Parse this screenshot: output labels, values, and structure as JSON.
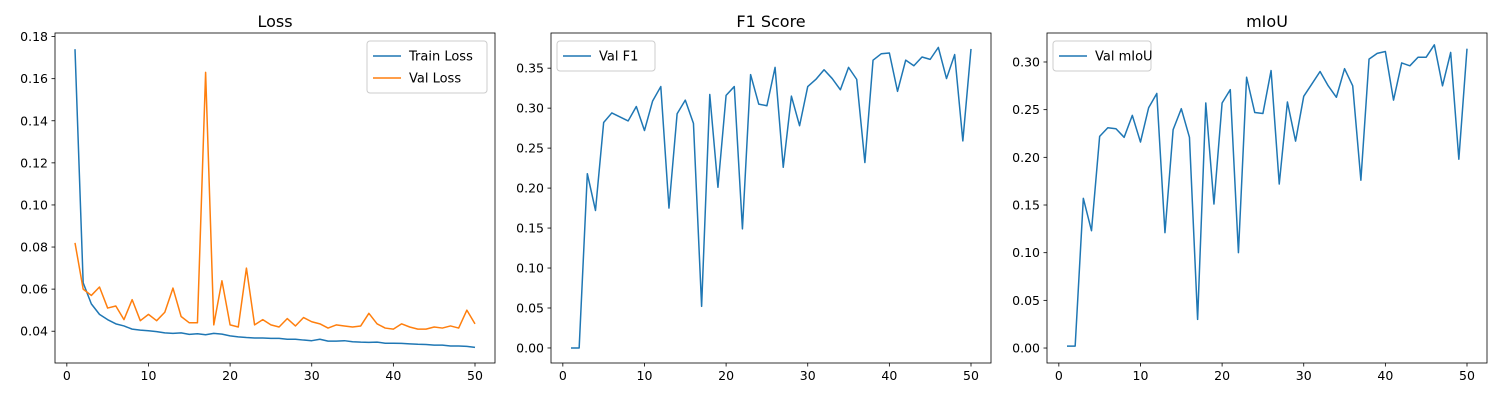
{
  "chart_data": [
    {
      "type": "line",
      "title": "Loss",
      "xlabel": "",
      "ylabel": "",
      "xlim": [
        -1.45,
        52.45
      ],
      "ylim": [
        0.0249,
        0.1817
      ],
      "xticks": [
        0,
        10,
        20,
        30,
        40,
        50
      ],
      "xtick_labels": [
        "0",
        "10",
        "20",
        "30",
        "40",
        "50"
      ],
      "yticks": [
        0.04,
        0.06,
        0.08,
        0.1,
        0.12,
        0.14,
        0.16,
        0.18
      ],
      "ytick_labels": [
        "0.04",
        "0.06",
        "0.08",
        "0.10",
        "0.12",
        "0.14",
        "0.16",
        "0.18"
      ],
      "grid": false,
      "legend": {
        "location": "top-right"
      },
      "x": [
        1,
        2,
        3,
        4,
        5,
        6,
        7,
        8,
        9,
        10,
        11,
        12,
        13,
        14,
        15,
        16,
        17,
        18,
        19,
        20,
        21,
        22,
        23,
        24,
        25,
        26,
        27,
        28,
        29,
        30,
        31,
        32,
        33,
        34,
        35,
        36,
        37,
        38,
        39,
        40,
        41,
        42,
        43,
        44,
        45,
        46,
        47,
        48,
        49,
        50
      ],
      "series": [
        {
          "name": "Train Loss",
          "color": "#1f77b4",
          "values": [
            0.174,
            0.063,
            0.053,
            0.048,
            0.0455,
            0.0435,
            0.0425,
            0.041,
            0.0405,
            0.0402,
            0.0398,
            0.0392,
            0.039,
            0.0392,
            0.0385,
            0.0388,
            0.0383,
            0.039,
            0.0386,
            0.0378,
            0.0373,
            0.037,
            0.0368,
            0.0368,
            0.0366,
            0.0366,
            0.0362,
            0.0362,
            0.0358,
            0.0355,
            0.0362,
            0.0353,
            0.0353,
            0.0355,
            0.035,
            0.0348,
            0.0347,
            0.0348,
            0.0343,
            0.0343,
            0.0342,
            0.034,
            0.0338,
            0.0337,
            0.0334,
            0.0334,
            0.033,
            0.033,
            0.0328,
            0.0323
          ]
        },
        {
          "name": "Val Loss",
          "color": "#ff7f0e",
          "values": [
            0.082,
            0.06,
            0.057,
            0.061,
            0.051,
            0.052,
            0.0455,
            0.055,
            0.045,
            0.048,
            0.045,
            0.049,
            0.0605,
            0.047,
            0.044,
            0.044,
            0.163,
            0.043,
            0.064,
            0.043,
            0.042,
            0.07,
            0.043,
            0.0455,
            0.043,
            0.042,
            0.046,
            0.0425,
            0.0465,
            0.0445,
            0.0435,
            0.0415,
            0.043,
            0.0425,
            0.042,
            0.0425,
            0.0485,
            0.0435,
            0.0415,
            0.041,
            0.0435,
            0.042,
            0.041,
            0.041,
            0.042,
            0.0415,
            0.0425,
            0.0415,
            0.05,
            0.0435
          ]
        }
      ]
    },
    {
      "type": "line",
      "title": "F1 Score",
      "xlabel": "",
      "ylabel": "",
      "xlim": [
        -1.45,
        52.45
      ],
      "ylim": [
        -0.0188,
        0.394
      ],
      "xticks": [
        0,
        10,
        20,
        30,
        40,
        50
      ],
      "xtick_labels": [
        "0",
        "10",
        "20",
        "30",
        "40",
        "50"
      ],
      "yticks": [
        0.0,
        0.05,
        0.1,
        0.15,
        0.2,
        0.25,
        0.3,
        0.35
      ],
      "ytick_labels": [
        "0.00",
        "0.05",
        "0.10",
        "0.15",
        "0.20",
        "0.25",
        "0.30",
        "0.35"
      ],
      "grid": false,
      "legend": {
        "location": "top-left"
      },
      "x": [
        1,
        2,
        3,
        4,
        5,
        6,
        7,
        8,
        9,
        10,
        11,
        12,
        13,
        14,
        15,
        16,
        17,
        18,
        19,
        20,
        21,
        22,
        23,
        24,
        25,
        26,
        27,
        28,
        29,
        30,
        31,
        32,
        33,
        34,
        35,
        36,
        37,
        38,
        39,
        40,
        41,
        42,
        43,
        44,
        45,
        46,
        47,
        48,
        49,
        50
      ],
      "series": [
        {
          "name": "Val F1",
          "color": "#1f77b4",
          "values": [
            0.0,
            0.0,
            0.218,
            0.172,
            0.282,
            0.294,
            0.289,
            0.284,
            0.302,
            0.272,
            0.309,
            0.327,
            0.175,
            0.293,
            0.31,
            0.281,
            0.052,
            0.317,
            0.201,
            0.316,
            0.327,
            0.149,
            0.342,
            0.305,
            0.303,
            0.351,
            0.226,
            0.315,
            0.278,
            0.327,
            0.336,
            0.348,
            0.337,
            0.323,
            0.351,
            0.336,
            0.232,
            0.36,
            0.368,
            0.369,
            0.321,
            0.36,
            0.353,
            0.364,
            0.361,
            0.376,
            0.337,
            0.367,
            0.259,
            0.374
          ]
        }
      ]
    },
    {
      "type": "line",
      "title": "mIoU",
      "xlabel": "",
      "ylabel": "",
      "xlim": [
        -1.45,
        52.45
      ],
      "ylim": [
        -0.0157,
        0.3304
      ],
      "xticks": [
        0,
        10,
        20,
        30,
        40,
        50
      ],
      "xtick_labels": [
        "0",
        "10",
        "20",
        "30",
        "40",
        "50"
      ],
      "yticks": [
        0.0,
        0.05,
        0.1,
        0.15,
        0.2,
        0.25,
        0.3
      ],
      "ytick_labels": [
        "0.00",
        "0.05",
        "0.10",
        "0.15",
        "0.20",
        "0.25",
        "0.30"
      ],
      "grid": false,
      "legend": {
        "location": "top-left"
      },
      "x": [
        1,
        2,
        3,
        4,
        5,
        6,
        7,
        8,
        9,
        10,
        11,
        12,
        13,
        14,
        15,
        16,
        17,
        18,
        19,
        20,
        21,
        22,
        23,
        24,
        25,
        26,
        27,
        28,
        29,
        30,
        31,
        32,
        33,
        34,
        35,
        36,
        37,
        38,
        39,
        40,
        41,
        42,
        43,
        44,
        45,
        46,
        47,
        48,
        49,
        50
      ],
      "series": [
        {
          "name": "Val mIoU",
          "color": "#1f77b4",
          "values": [
            0.002,
            0.002,
            0.157,
            0.123,
            0.222,
            0.231,
            0.23,
            0.221,
            0.244,
            0.216,
            0.252,
            0.267,
            0.121,
            0.229,
            0.251,
            0.221,
            0.03,
            0.257,
            0.151,
            0.257,
            0.271,
            0.1,
            0.284,
            0.247,
            0.246,
            0.291,
            0.172,
            0.258,
            0.217,
            0.264,
            0.277,
            0.29,
            0.275,
            0.263,
            0.293,
            0.275,
            0.176,
            0.303,
            0.309,
            0.311,
            0.26,
            0.299,
            0.296,
            0.305,
            0.305,
            0.318,
            0.275,
            0.31,
            0.198,
            0.314
          ]
        }
      ]
    }
  ]
}
